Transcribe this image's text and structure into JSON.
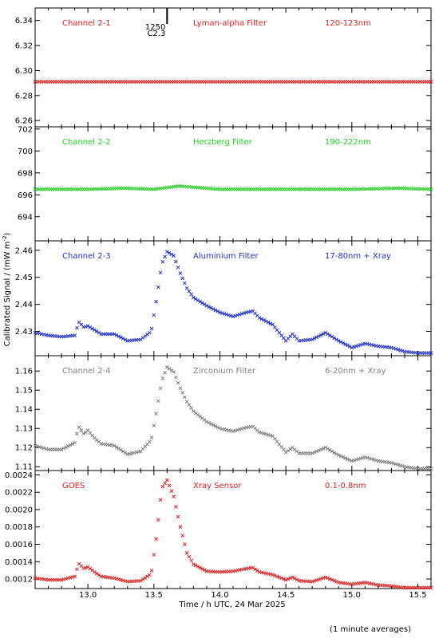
{
  "chart_data": {
    "type": "scatter",
    "xlabel": "Time / h UTC, 24 Mar 2025",
    "ylabel": "Calibrated Signal / (mW m",
    "ylabel_sup": "-2",
    "ylabel_close": ")",
    "footnote": "(1 minute averages)",
    "xlim": [
      12.6,
      15.6
    ],
    "xticks": [
      13.0,
      13.5,
      14.0,
      14.5,
      15.0,
      15.5
    ],
    "xtick_labels": [
      "13.0",
      "13.5",
      "14.0",
      "14.5",
      "15.0",
      "15.5"
    ],
    "event_marker": {
      "x": 13.6,
      "label_top": "1250",
      "label_bottom": "C2.3"
    },
    "panels": [
      {
        "channel": "Channel 2-1",
        "filter": "Lyman-alpha Filter",
        "band": "120-123nm",
        "color": "#e02020",
        "ylim": [
          6.255,
          6.35
        ],
        "yticks": [
          6.26,
          6.28,
          6.3,
          6.32,
          6.34
        ],
        "ytick_labels": [
          "6.26",
          "6.28",
          "6.30",
          "6.32",
          "6.34"
        ],
        "series": {
          "x": [
            12.6,
            13.0,
            13.5,
            14.0,
            14.5,
            15.0,
            15.6
          ],
          "y": [
            6.291,
            6.291,
            6.291,
            6.291,
            6.291,
            6.291,
            6.291
          ]
        }
      },
      {
        "channel": "Channel 2-2",
        "filter": "Herzberg Filter",
        "band": "190-222nm",
        "color": "#20d020",
        "ylim": [
          691.8,
          702.2
        ],
        "yticks": [
          694,
          696,
          698,
          700,
          702
        ],
        "ytick_labels": [
          "694",
          "696",
          "698",
          "700",
          "702"
        ],
        "series": {
          "x": [
            12.6,
            13.0,
            13.28,
            13.5,
            13.69,
            14.0,
            14.5,
            15.0,
            15.35,
            15.6
          ],
          "y": [
            696.5,
            696.5,
            696.6,
            696.5,
            696.8,
            696.5,
            696.5,
            696.5,
            696.6,
            696.5
          ]
        }
      },
      {
        "channel": "Channel 2-3",
        "filter": "Aluminium Filter",
        "band": "17-80nm + Xray",
        "color": "#2030d0",
        "ylim": [
          2.421,
          2.4635
        ],
        "yticks": [
          2.43,
          2.44,
          2.45,
          2.46
        ],
        "ytick_labels": [
          "2.43",
          "2.44",
          "2.45",
          "2.46"
        ],
        "series": {
          "x": [
            12.6,
            12.7,
            12.8,
            12.9,
            12.93,
            12.97,
            13.0,
            13.05,
            13.1,
            13.2,
            13.3,
            13.4,
            13.48,
            13.52,
            13.56,
            13.6,
            13.65,
            13.7,
            13.75,
            13.8,
            13.9,
            14.0,
            14.1,
            14.2,
            14.25,
            14.3,
            14.4,
            14.5,
            14.55,
            14.6,
            14.7,
            14.8,
            14.9,
            15.0,
            15.1,
            15.2,
            15.3,
            15.4,
            15.5,
            15.6
          ],
          "y": [
            2.4295,
            2.4285,
            2.428,
            2.4285,
            2.4335,
            2.4315,
            2.432,
            2.4305,
            2.429,
            2.429,
            2.4265,
            2.427,
            2.43,
            2.442,
            2.455,
            2.4595,
            2.458,
            2.4515,
            2.446,
            2.4425,
            2.4395,
            2.437,
            2.4355,
            2.437,
            2.4375,
            2.435,
            2.4325,
            2.4265,
            2.429,
            2.4265,
            2.427,
            2.4295,
            2.4265,
            2.424,
            2.4255,
            2.4245,
            2.424,
            2.4225,
            2.422,
            2.422
          ]
        }
      },
      {
        "channel": "Channel 2-4",
        "filter": "Zirconium Filter",
        "band": "6-20nm + Xray",
        "color": "#808080",
        "ylim": [
          1.108,
          1.168
        ],
        "yticks": [
          1.11,
          1.12,
          1.13,
          1.14,
          1.15,
          1.16
        ],
        "ytick_labels": [
          "1.11",
          "1.12",
          "1.13",
          "1.14",
          "1.15",
          "1.16"
        ],
        "series": {
          "x": [
            12.6,
            12.7,
            12.8,
            12.9,
            12.93,
            12.97,
            13.0,
            13.05,
            13.1,
            13.2,
            13.3,
            13.4,
            13.48,
            13.52,
            13.56,
            13.6,
            13.65,
            13.7,
            13.75,
            13.8,
            13.9,
            14.0,
            14.1,
            14.2,
            14.25,
            14.3,
            14.4,
            14.5,
            14.55,
            14.6,
            14.7,
            14.8,
            14.9,
            15.0,
            15.1,
            15.2,
            15.3,
            15.4,
            15.5,
            15.6
          ],
          "y": [
            1.121,
            1.119,
            1.119,
            1.1225,
            1.131,
            1.127,
            1.129,
            1.125,
            1.122,
            1.121,
            1.1165,
            1.118,
            1.124,
            1.139,
            1.155,
            1.162,
            1.1595,
            1.151,
            1.144,
            1.139,
            1.1335,
            1.13,
            1.1285,
            1.1305,
            1.131,
            1.128,
            1.126,
            1.1175,
            1.12,
            1.117,
            1.117,
            1.12,
            1.116,
            1.113,
            1.115,
            1.113,
            1.112,
            1.11,
            1.109,
            1.109
          ]
        }
      },
      {
        "channel": "GOES",
        "filter": "Xray Sensor",
        "band": "0.1-0.8nm",
        "color": "#e02020",
        "ylim": [
          0.00109,
          0.00245
        ],
        "yticks": [
          0.0012,
          0.0014,
          0.0016,
          0.0018,
          0.002,
          0.0022,
          0.0024
        ],
        "ytick_labels": [
          "0.0012",
          "0.0014",
          "0.0016",
          "0.0018",
          "0.0020",
          "0.0022",
          "0.0024"
        ],
        "series": {
          "x": [
            12.6,
            12.7,
            12.8,
            12.9,
            12.93,
            12.97,
            13.0,
            13.05,
            13.1,
            13.2,
            13.3,
            13.4,
            13.48,
            13.52,
            13.56,
            13.6,
            13.65,
            13.7,
            13.75,
            13.8,
            13.9,
            14.0,
            14.1,
            14.2,
            14.25,
            14.3,
            14.4,
            14.5,
            14.55,
            14.6,
            14.7,
            14.8,
            14.9,
            15.0,
            15.1,
            15.2,
            15.3,
            15.4,
            15.5,
            15.6
          ],
          "y": [
            0.00121,
            0.00119,
            0.00119,
            0.00123,
            0.00138,
            0.00132,
            0.00134,
            0.00128,
            0.00123,
            0.00121,
            0.00117,
            0.00118,
            0.00126,
            0.0017,
            0.00225,
            0.00234,
            0.00215,
            0.0018,
            0.0015,
            0.00137,
            0.00129,
            0.00128,
            0.00129,
            0.00132,
            0.00133,
            0.00128,
            0.00125,
            0.00119,
            0.00122,
            0.00118,
            0.00117,
            0.00122,
            0.00116,
            0.00114,
            0.00116,
            0.00113,
            0.00112,
            0.0011,
            0.0011,
            0.0011
          ]
        }
      }
    ]
  }
}
